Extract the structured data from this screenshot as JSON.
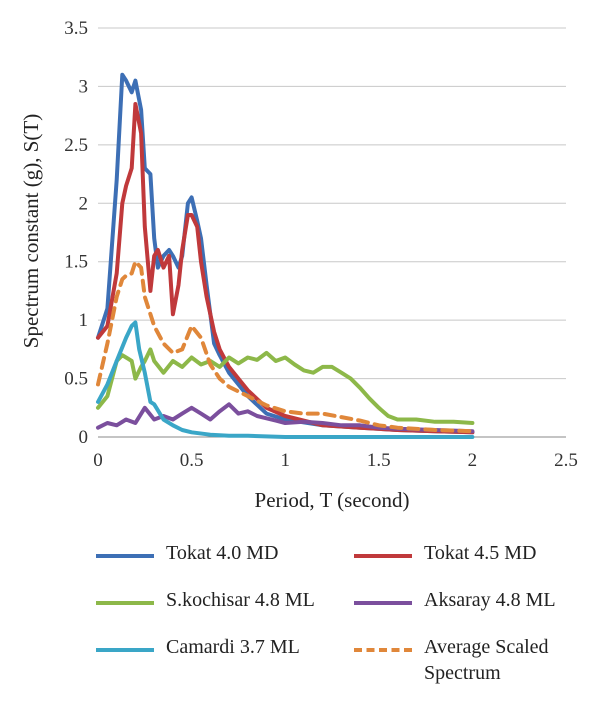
{
  "chart_data": {
    "type": "line",
    "xlabel": "Period, T (second)",
    "ylabel": "Spectrum constant (g), S(T)",
    "xlim": [
      0,
      2.5
    ],
    "ylim": [
      0,
      3.5
    ],
    "xticks": [
      "0",
      "0.5",
      "1",
      "1.5",
      "2",
      "2.5"
    ],
    "yticks": [
      "0",
      "0.5",
      "1",
      "1.5",
      "2",
      "2.5",
      "3",
      "3.5"
    ],
    "grid": "horizontal",
    "legend_position": "bottom",
    "series": [
      {
        "name": "Tokat 4.0 MD",
        "color": "#3d6fb5",
        "dash": "solid",
        "x": [
          0.0,
          0.05,
          0.1,
          0.13,
          0.15,
          0.18,
          0.2,
          0.23,
          0.25,
          0.28,
          0.3,
          0.32,
          0.35,
          0.38,
          0.4,
          0.43,
          0.45,
          0.48,
          0.5,
          0.53,
          0.55,
          0.58,
          0.62,
          0.65,
          0.7,
          0.75,
          0.8,
          0.9,
          1.0,
          1.2,
          1.4,
          1.6,
          1.8,
          2.0
        ],
        "y": [
          0.85,
          1.1,
          2.2,
          3.1,
          3.05,
          2.95,
          3.05,
          2.8,
          2.3,
          2.25,
          1.7,
          1.45,
          1.55,
          1.6,
          1.55,
          1.45,
          1.55,
          2.0,
          2.05,
          1.85,
          1.7,
          1.3,
          0.8,
          0.7,
          0.55,
          0.45,
          0.35,
          0.2,
          0.15,
          0.1,
          0.08,
          0.06,
          0.05,
          0.04
        ]
      },
      {
        "name": "Tokat 4.5 MD",
        "color": "#c0393b",
        "dash": "solid",
        "x": [
          0.0,
          0.05,
          0.1,
          0.13,
          0.15,
          0.18,
          0.2,
          0.23,
          0.25,
          0.28,
          0.3,
          0.32,
          0.35,
          0.38,
          0.4,
          0.43,
          0.45,
          0.48,
          0.5,
          0.53,
          0.55,
          0.58,
          0.62,
          0.65,
          0.7,
          0.75,
          0.8,
          0.9,
          1.0,
          1.2,
          1.4,
          1.6,
          1.8,
          2.0
        ],
        "y": [
          0.85,
          0.95,
          1.4,
          2.0,
          2.15,
          2.3,
          2.85,
          2.6,
          1.8,
          1.25,
          1.55,
          1.6,
          1.45,
          1.55,
          1.05,
          1.3,
          1.6,
          1.9,
          1.9,
          1.8,
          1.5,
          1.2,
          0.9,
          0.75,
          0.6,
          0.5,
          0.4,
          0.25,
          0.18,
          0.1,
          0.08,
          0.06,
          0.05,
          0.04
        ]
      },
      {
        "name": "S.kochisar 4.8 ML",
        "color": "#8db849",
        "dash": "solid",
        "x": [
          0.0,
          0.05,
          0.1,
          0.13,
          0.15,
          0.18,
          0.2,
          0.23,
          0.25,
          0.28,
          0.3,
          0.35,
          0.4,
          0.45,
          0.5,
          0.55,
          0.6,
          0.65,
          0.7,
          0.75,
          0.8,
          0.85,
          0.9,
          0.95,
          1.0,
          1.05,
          1.1,
          1.15,
          1.2,
          1.25,
          1.3,
          1.35,
          1.4,
          1.45,
          1.5,
          1.55,
          1.6,
          1.7,
          1.8,
          1.9,
          2.0
        ],
        "y": [
          0.25,
          0.35,
          0.65,
          0.7,
          0.68,
          0.65,
          0.5,
          0.6,
          0.65,
          0.75,
          0.65,
          0.55,
          0.65,
          0.6,
          0.68,
          0.62,
          0.65,
          0.6,
          0.68,
          0.63,
          0.68,
          0.66,
          0.72,
          0.65,
          0.68,
          0.62,
          0.57,
          0.55,
          0.6,
          0.6,
          0.55,
          0.5,
          0.42,
          0.33,
          0.25,
          0.18,
          0.15,
          0.15,
          0.13,
          0.13,
          0.12
        ]
      },
      {
        "name": "Aksaray 4.8 ML",
        "color": "#7b4f9d",
        "dash": "solid",
        "x": [
          0.0,
          0.05,
          0.1,
          0.15,
          0.2,
          0.25,
          0.3,
          0.35,
          0.4,
          0.45,
          0.5,
          0.55,
          0.6,
          0.65,
          0.7,
          0.75,
          0.8,
          0.85,
          0.9,
          0.95,
          1.0,
          1.1,
          1.2,
          1.3,
          1.4,
          1.5,
          1.6,
          1.8,
          2.0
        ],
        "y": [
          0.08,
          0.12,
          0.1,
          0.15,
          0.12,
          0.25,
          0.15,
          0.18,
          0.15,
          0.2,
          0.25,
          0.2,
          0.15,
          0.22,
          0.28,
          0.2,
          0.22,
          0.18,
          0.16,
          0.14,
          0.12,
          0.13,
          0.12,
          0.1,
          0.1,
          0.08,
          0.07,
          0.06,
          0.05
        ]
      },
      {
        "name": "Camardi 3.7 ML",
        "color": "#3aa6c7",
        "dash": "solid",
        "x": [
          0.0,
          0.05,
          0.1,
          0.15,
          0.18,
          0.2,
          0.22,
          0.25,
          0.28,
          0.3,
          0.35,
          0.4,
          0.45,
          0.5,
          0.6,
          0.7,
          0.8,
          1.0,
          1.2,
          1.5,
          2.0
        ],
        "y": [
          0.3,
          0.45,
          0.65,
          0.85,
          0.95,
          0.98,
          0.75,
          0.55,
          0.3,
          0.28,
          0.15,
          0.1,
          0.06,
          0.04,
          0.02,
          0.01,
          0.01,
          0.0,
          0.0,
          0.0,
          0.0
        ]
      },
      {
        "name": "Average Scaled Spectrum",
        "color": "#e0873a",
        "dash": "dashed",
        "x": [
          0.0,
          0.05,
          0.1,
          0.13,
          0.15,
          0.18,
          0.2,
          0.23,
          0.25,
          0.3,
          0.35,
          0.4,
          0.45,
          0.5,
          0.55,
          0.6,
          0.65,
          0.7,
          0.8,
          0.9,
          1.0,
          1.1,
          1.2,
          1.3,
          1.4,
          1.5,
          1.6,
          1.8,
          2.0
        ],
        "y": [
          0.45,
          0.8,
          1.2,
          1.35,
          1.38,
          1.4,
          1.5,
          1.45,
          1.2,
          0.95,
          0.8,
          0.72,
          0.75,
          0.95,
          0.85,
          0.62,
          0.5,
          0.43,
          0.35,
          0.27,
          0.22,
          0.2,
          0.2,
          0.17,
          0.14,
          0.1,
          0.08,
          0.06,
          0.05
        ]
      }
    ]
  }
}
